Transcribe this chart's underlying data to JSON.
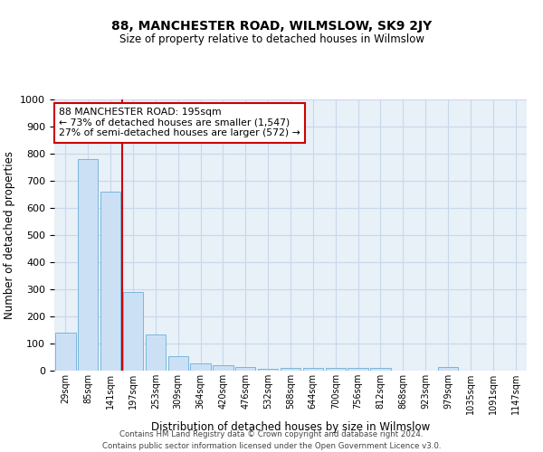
{
  "title": "88, MANCHESTER ROAD, WILMSLOW, SK9 2JY",
  "subtitle": "Size of property relative to detached houses in Wilmslow",
  "xlabel": "Distribution of detached houses by size in Wilmslow",
  "ylabel": "Number of detached properties",
  "bar_color": "#cce0f5",
  "bar_edge_color": "#6aaed6",
  "grid_color": "#c8d8ea",
  "background_color": "#e8f0f8",
  "categories": [
    "29sqm",
    "85sqm",
    "141sqm",
    "197sqm",
    "253sqm",
    "309sqm",
    "364sqm",
    "420sqm",
    "476sqm",
    "532sqm",
    "588sqm",
    "644sqm",
    "700sqm",
    "756sqm",
    "812sqm",
    "868sqm",
    "923sqm",
    "979sqm",
    "1035sqm",
    "1091sqm",
    "1147sqm"
  ],
  "values": [
    140,
    780,
    660,
    290,
    135,
    53,
    28,
    19,
    14,
    7,
    10,
    10,
    11,
    9,
    10,
    0,
    0,
    14,
    0,
    0,
    0
  ],
  "ylim": [
    0,
    1000
  ],
  "yticks": [
    0,
    100,
    200,
    300,
    400,
    500,
    600,
    700,
    800,
    900,
    1000
  ],
  "vline_color": "#cc0000",
  "vline_pos": 2.5,
  "annotation_text": "88 MANCHESTER ROAD: 195sqm\n← 73% of detached houses are smaller (1,547)\n27% of semi-detached houses are larger (572) →",
  "annotation_box_color": "white",
  "annotation_border_color": "#cc0000",
  "footer_line1": "Contains HM Land Registry data © Crown copyright and database right 2024.",
  "footer_line2": "Contains public sector information licensed under the Open Government Licence v3.0."
}
